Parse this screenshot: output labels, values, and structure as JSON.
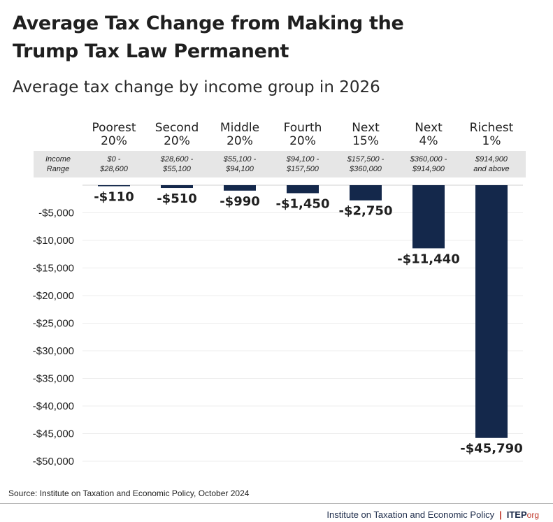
{
  "colors": {
    "bar": "#14284b",
    "title": "#14284b",
    "band": "#e6e6e6",
    "grid": "#ececec",
    "accent": "#c0392b"
  },
  "title": {
    "line1": "Average Tax Change from Making the",
    "line2": "Trump Tax Law Permanent"
  },
  "subtitle": "Average tax change by income group in 2026",
  "chart_data": {
    "type": "bar",
    "title": "Average Tax Change from Making the Trump Tax Law Permanent",
    "subtitle": "Average tax change by income group in 2026",
    "categories": [
      [
        "Poorest",
        "20%"
      ],
      [
        "Second",
        "20%"
      ],
      [
        "Middle",
        "20%"
      ],
      [
        "Fourth",
        "20%"
      ],
      [
        "Next",
        "15%"
      ],
      [
        "Next",
        "4%"
      ],
      [
        "Richest",
        "1%"
      ]
    ],
    "income_range_label": [
      "Income",
      "Range"
    ],
    "income_ranges": [
      [
        "$0 -",
        "$28,600"
      ],
      [
        "$28,600 -",
        "$55,100"
      ],
      [
        "$55,100 -",
        "$94,100"
      ],
      [
        "$94,100 -",
        "$157,500"
      ],
      [
        "$157,500 -",
        "$360,000"
      ],
      [
        "$360,000 -",
        "$914,900"
      ],
      [
        "$914,900",
        "and above"
      ]
    ],
    "values": [
      -110,
      -510,
      -990,
      -1450,
      -2750,
      -11440,
      -45790
    ],
    "value_labels": [
      "-$110",
      "-$510",
      "-$990",
      "-$1,450",
      "-$2,750",
      "-$11,440",
      "-$45,790"
    ],
    "yticks": [
      -5000,
      -10000,
      -15000,
      -20000,
      -25000,
      -30000,
      -35000,
      -40000,
      -45000,
      -50000
    ],
    "ytick_labels": [
      "-$5,000",
      "-$10,000",
      "-$15,000",
      "-$20,000",
      "-$25,000",
      "-$30,000",
      "-$35,000",
      "-$40,000",
      "-$45,000",
      "-$50,000"
    ],
    "ylim": [
      -50000,
      0
    ],
    "xlabel": "",
    "ylabel": "",
    "grid": true
  },
  "source": "Source: Institute on Taxation and Economic Policy, October 2024",
  "footer": {
    "org": "Institute on Taxation and Economic Policy",
    "separator": "|",
    "brand": "ITEP",
    "brand_suffix": "org"
  }
}
